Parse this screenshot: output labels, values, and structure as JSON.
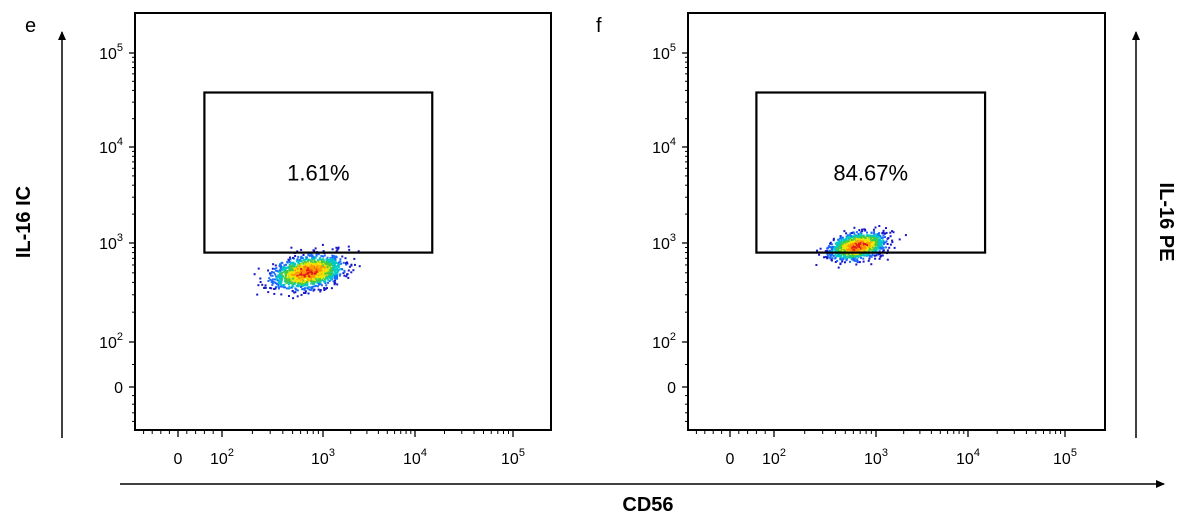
{
  "chart_data": {
    "type": "scatter",
    "x_axis_label": "CD56",
    "x_scale": "biexponential",
    "y_scale": "biexponential",
    "x_ticks": [
      "0",
      "10",
      "10",
      "10",
      "10"
    ],
    "x_tick_exponents": [
      "",
      "2",
      "3",
      "4",
      "5"
    ],
    "y_ticks": [
      "0",
      "10",
      "10",
      "10",
      "10"
    ],
    "y_tick_exponents": [
      "",
      "2",
      "3",
      "4",
      "5"
    ],
    "panels": [
      {
        "panel_letter": "e",
        "y_axis_label": "IL-16 IC",
        "gate": {
          "x_min": 60,
          "x_max": 15000,
          "y_min": 800,
          "y_max": 38000
        },
        "gate_percent": "1.61%",
        "population": {
          "x_center": 700,
          "y_center": 520,
          "x_spread": 0.45,
          "y_spread": 0.22,
          "color_scale": "density"
        }
      },
      {
        "panel_letter": "f",
        "y_axis_label": "IL-16 PE",
        "gate": {
          "x_min": 60,
          "x_max": 15000,
          "y_min": 800,
          "y_max": 38000
        },
        "gate_percent": "84.67%",
        "population": {
          "x_center": 650,
          "y_center": 950,
          "x_spread": 0.35,
          "y_spread": 0.18,
          "color_scale": "density"
        }
      }
    ]
  }
}
